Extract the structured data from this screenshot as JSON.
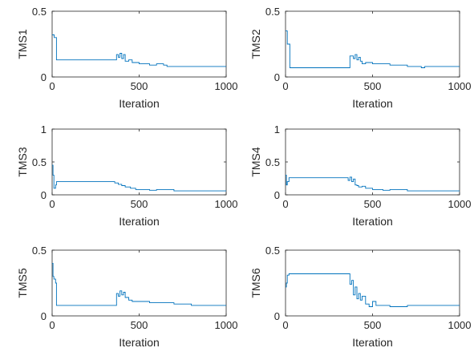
{
  "chart_data": [
    {
      "type": "line",
      "ylabel": "TMS1",
      "xlabel": "Iteration",
      "xlim": [
        0,
        1000
      ],
      "ylim": [
        0,
        0.5
      ],
      "xticks": [
        "0",
        "500",
        "1000"
      ],
      "yticks": [
        "0",
        "0.5"
      ],
      "grid": false,
      "color": "#0072BD",
      "series": [
        {
          "x": [
            0,
            10,
            12,
            25,
            360,
            370,
            380,
            390,
            400,
            410,
            420,
            440,
            460,
            500,
            560,
            600,
            640,
            660,
            700,
            1000
          ],
          "y": [
            0.32,
            0.32,
            0.3,
            0.13,
            0.13,
            0.17,
            0.15,
            0.18,
            0.14,
            0.17,
            0.12,
            0.13,
            0.11,
            0.1,
            0.09,
            0.1,
            0.09,
            0.08,
            0.08,
            0.08
          ]
        }
      ]
    },
    {
      "type": "line",
      "ylabel": "TMS2",
      "xlabel": "Iteration",
      "xlim": [
        0,
        1000
      ],
      "ylim": [
        0,
        0.5
      ],
      "xticks": [
        "0",
        "500",
        "1000"
      ],
      "yticks": [
        "0",
        "0.5"
      ],
      "grid": false,
      "color": "#0072BD",
      "series": [
        {
          "x": [
            0,
            5,
            10,
            25,
            150,
            360,
            370,
            390,
            400,
            410,
            420,
            430,
            440,
            460,
            500,
            560,
            600,
            700,
            780,
            800,
            1000
          ],
          "y": [
            0.35,
            0.35,
            0.25,
            0.07,
            0.07,
            0.07,
            0.16,
            0.14,
            0.17,
            0.13,
            0.15,
            0.12,
            0.1,
            0.11,
            0.1,
            0.1,
            0.09,
            0.08,
            0.07,
            0.08,
            0.08
          ]
        }
      ]
    },
    {
      "type": "line",
      "ylabel": "TMS3",
      "xlabel": "Iteration",
      "xlim": [
        0,
        1000
      ],
      "ylim": [
        0,
        1
      ],
      "xticks": [
        "0",
        "500",
        "1000"
      ],
      "yticks": [
        "0",
        "0.5",
        "1"
      ],
      "grid": false,
      "color": "#0072BD",
      "series": [
        {
          "x": [
            0,
            5,
            10,
            20,
            25,
            350,
            360,
            380,
            400,
            420,
            450,
            480,
            500,
            560,
            600,
            700,
            1000
          ],
          "y": [
            0.45,
            0.3,
            0.1,
            0.15,
            0.2,
            0.2,
            0.18,
            0.16,
            0.14,
            0.12,
            0.1,
            0.08,
            0.08,
            0.07,
            0.08,
            0.06,
            0.06
          ]
        }
      ]
    },
    {
      "type": "line",
      "ylabel": "TMS4",
      "xlabel": "Iteration",
      "xlim": [
        0,
        1000
      ],
      "ylim": [
        0,
        1
      ],
      "xticks": [
        "0",
        "500",
        "1000"
      ],
      "yticks": [
        "0",
        "0.5",
        "1"
      ],
      "grid": false,
      "color": "#0072BD",
      "series": [
        {
          "x": [
            0,
            5,
            10,
            20,
            25,
            350,
            360,
            370,
            380,
            390,
            400,
            410,
            420,
            440,
            460,
            500,
            560,
            600,
            700,
            1000
          ],
          "y": [
            0.3,
            0.15,
            0.2,
            0.26,
            0.26,
            0.26,
            0.22,
            0.27,
            0.2,
            0.24,
            0.15,
            0.14,
            0.12,
            0.13,
            0.1,
            0.08,
            0.07,
            0.08,
            0.06,
            0.06
          ]
        }
      ]
    },
    {
      "type": "line",
      "ylabel": "TMS5",
      "xlabel": "Iteration",
      "xlim": [
        0,
        1000
      ],
      "ylim": [
        0,
        0.5
      ],
      "xticks": [
        "0",
        "500",
        "1000"
      ],
      "yticks": [
        "0",
        "0.5"
      ],
      "grid": false,
      "color": "#0072BD",
      "series": [
        {
          "x": [
            0,
            5,
            10,
            20,
            25,
            360,
            370,
            380,
            390,
            400,
            410,
            420,
            440,
            460,
            500,
            560,
            600,
            700,
            800,
            1000
          ],
          "y": [
            0.4,
            0.3,
            0.28,
            0.25,
            0.08,
            0.08,
            0.17,
            0.15,
            0.19,
            0.16,
            0.18,
            0.14,
            0.12,
            0.11,
            0.11,
            0.1,
            0.1,
            0.09,
            0.08,
            0.08
          ]
        }
      ]
    },
    {
      "type": "line",
      "ylabel": "TMS6",
      "xlabel": "Iteration",
      "xlim": [
        0,
        1000
      ],
      "ylim": [
        0,
        0.5
      ],
      "xticks": [
        "0",
        "500",
        "1000"
      ],
      "yticks": [
        "0",
        "0.5"
      ],
      "grid": false,
      "color": "#0072BD",
      "series": [
        {
          "x": [
            0,
            5,
            10,
            20,
            360,
            370,
            380,
            390,
            400,
            410,
            420,
            430,
            440,
            460,
            480,
            500,
            520,
            560,
            600,
            700,
            1000
          ],
          "y": [
            0.22,
            0.25,
            0.31,
            0.32,
            0.32,
            0.24,
            0.27,
            0.16,
            0.22,
            0.13,
            0.17,
            0.12,
            0.15,
            0.09,
            0.07,
            0.11,
            0.08,
            0.08,
            0.07,
            0.08,
            0.08
          ]
        }
      ]
    }
  ]
}
